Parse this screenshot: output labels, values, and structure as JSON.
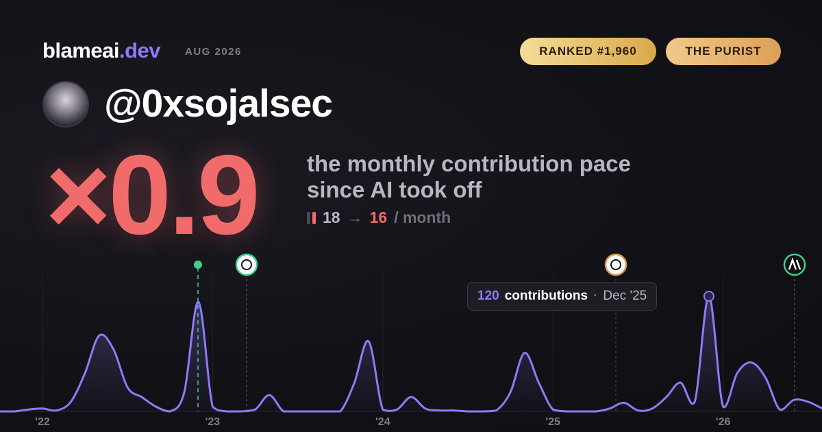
{
  "header": {
    "brand": "blameai",
    "brand_suffix": ".dev",
    "date": "AUG 2026",
    "rank": "RANKED #1,960",
    "tag": "THE PURIST",
    "handle": "@0xsojalsec"
  },
  "headline": {
    "multiplier": "×0.9",
    "description": "the monthly contribution pace since AI took off",
    "before": "18",
    "arrow": "→",
    "after": "16",
    "unit": "/ month"
  },
  "tooltip": {
    "value": "120",
    "label": "contributions",
    "separator": "·",
    "date": "Dec '25"
  },
  "chart_data": {
    "type": "area",
    "color": "#8b7cf6",
    "categories": [
      null,
      null,
      null,
      "'22",
      null,
      null,
      null,
      null,
      null,
      null,
      null,
      null,
      null,
      null,
      null,
      "'23",
      null,
      null,
      null,
      null,
      null,
      null,
      null,
      null,
      null,
      null,
      null,
      "'24",
      null,
      null,
      null,
      null,
      null,
      null,
      null,
      null,
      null,
      null,
      null,
      "'25",
      null,
      null,
      null,
      null,
      null,
      null,
      null,
      null,
      null,
      null,
      null,
      "'26",
      null,
      null,
      null,
      null,
      null,
      null,
      null
    ],
    "values": [
      0,
      0,
      2,
      3,
      1,
      10,
      40,
      79,
      65,
      25,
      15,
      5,
      0,
      20,
      114,
      5,
      0,
      0,
      2,
      17,
      0,
      0,
      0,
      0,
      0,
      30,
      73,
      2,
      2,
      15,
      3,
      1,
      1,
      0,
      0,
      1,
      20,
      61,
      30,
      2,
      0,
      0,
      0,
      3,
      9,
      1,
      3,
      15,
      30,
      10,
      120,
      5,
      40,
      51,
      35,
      2,
      12,
      10,
      3
    ],
    "ylim": [
      0,
      125
    ]
  }
}
